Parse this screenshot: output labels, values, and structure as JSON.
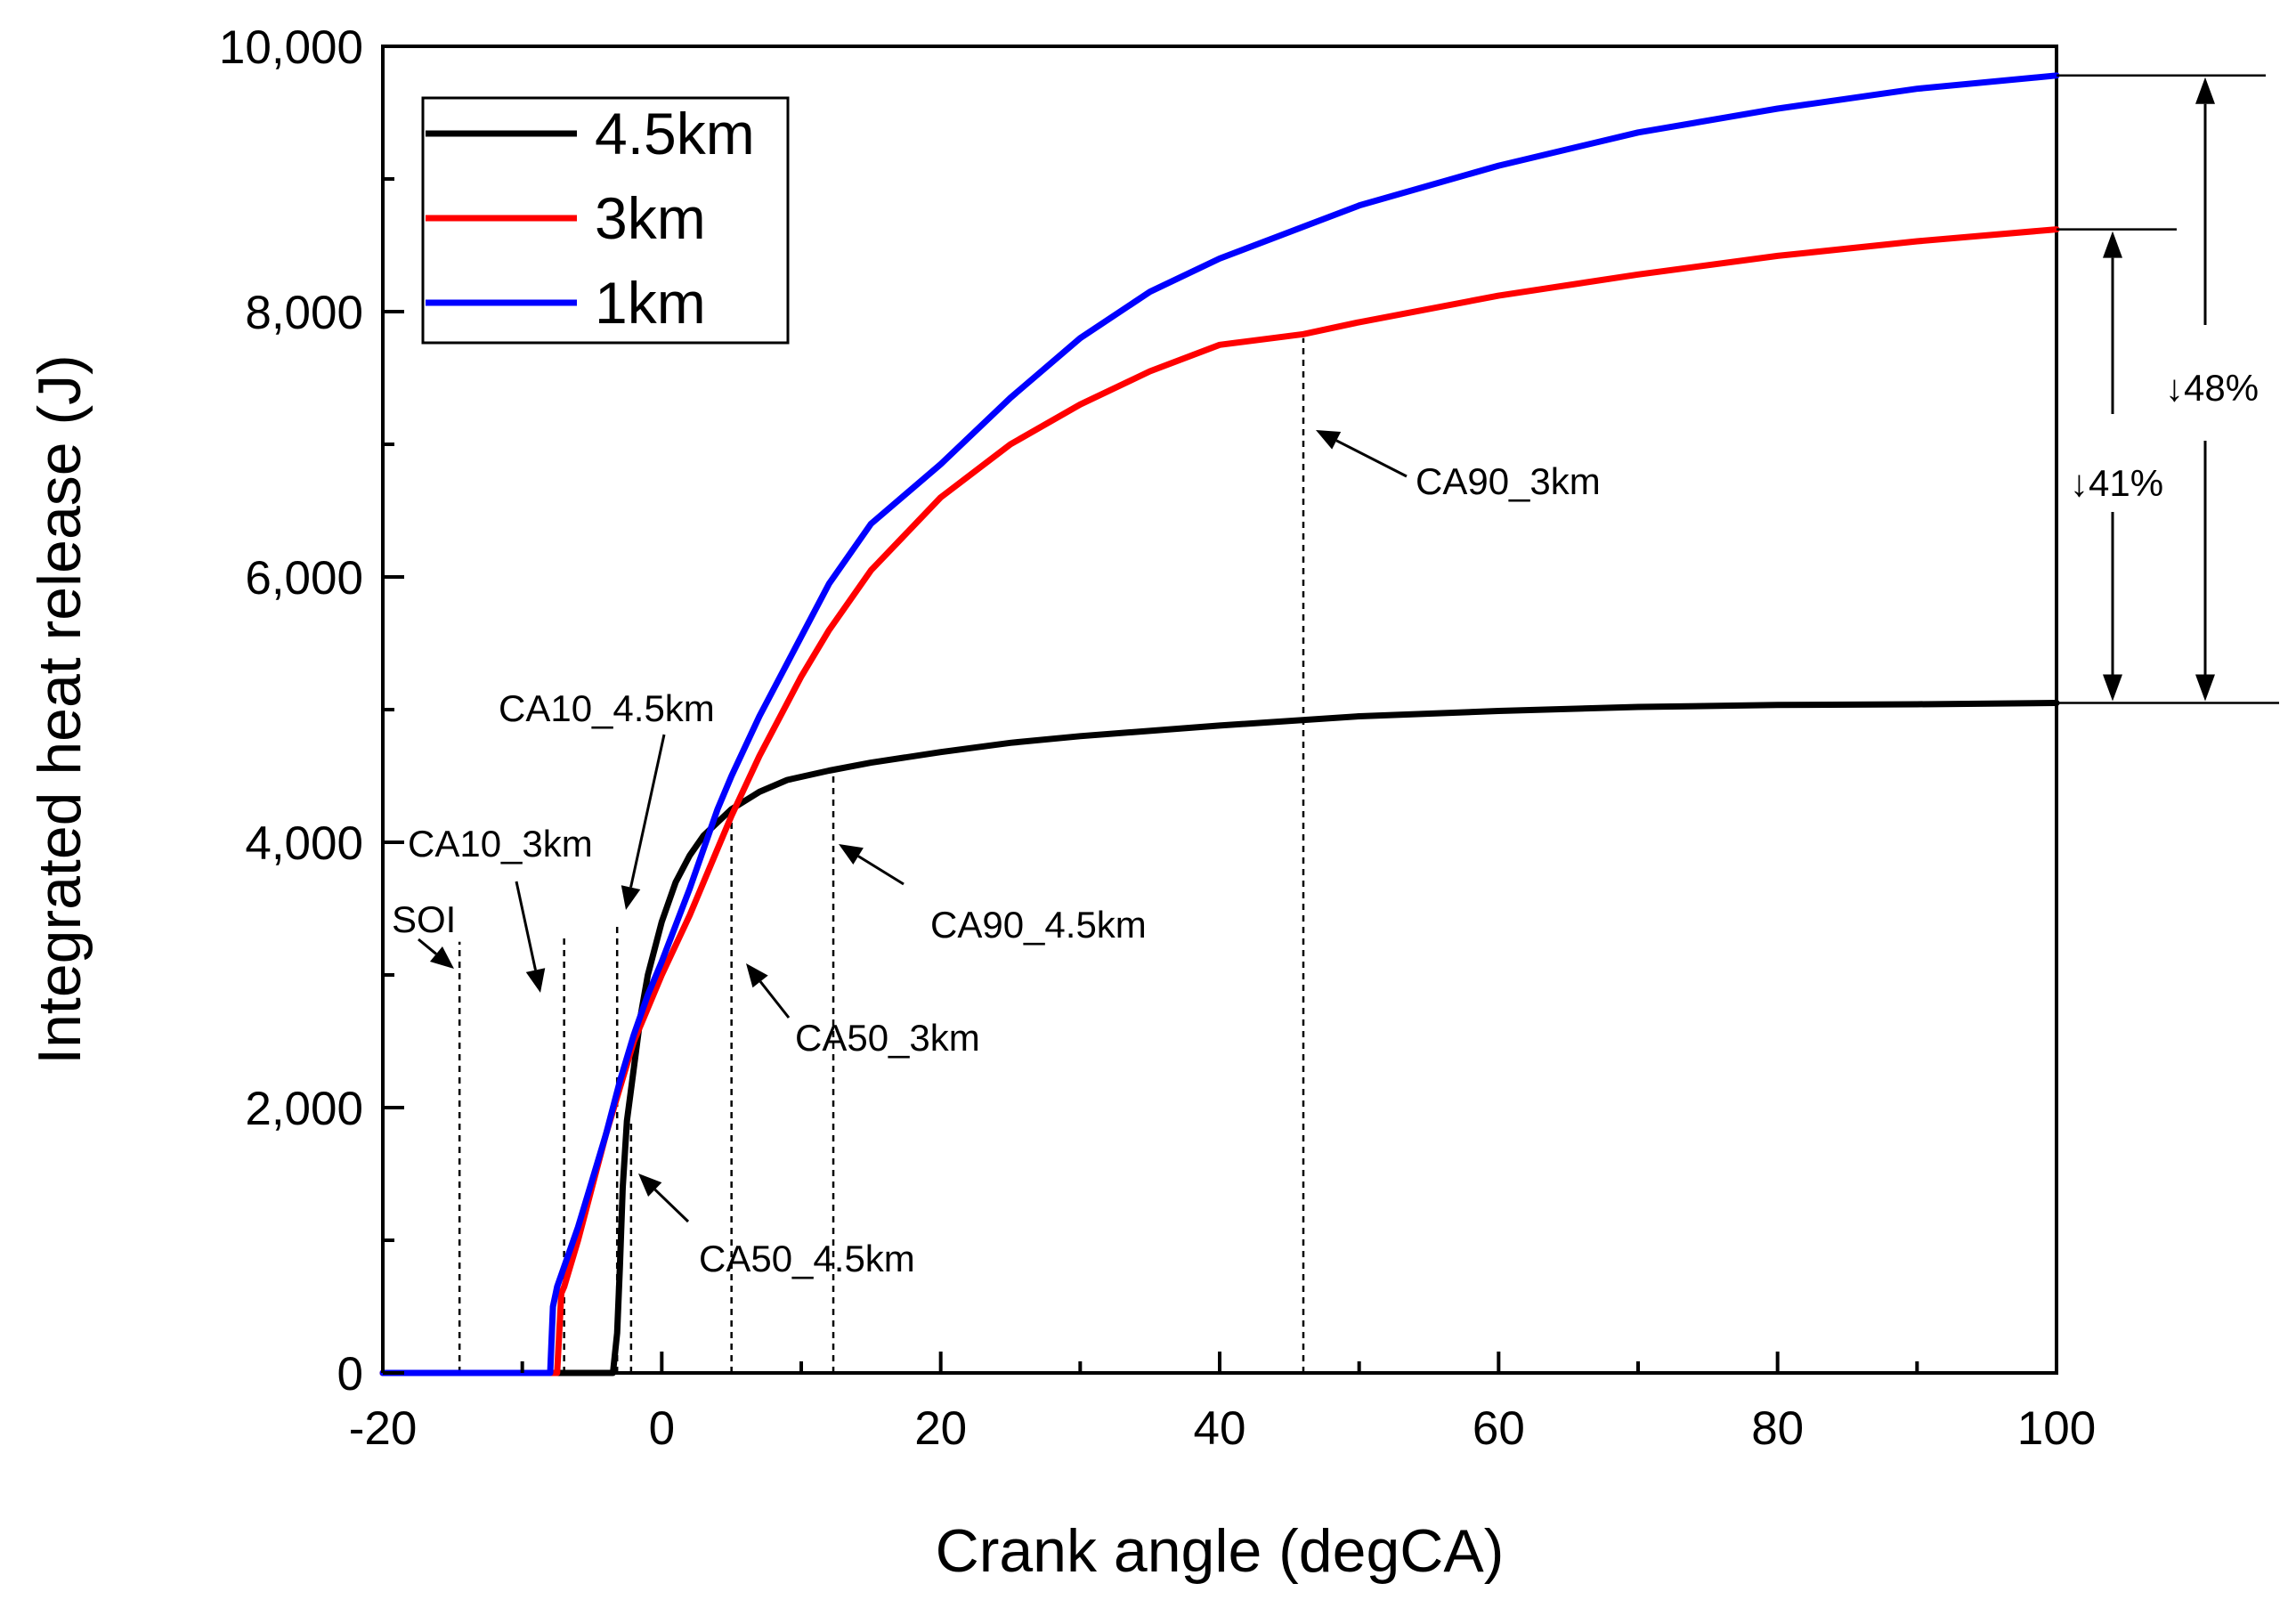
{
  "chart_data": {
    "type": "line",
    "title": "",
    "xlabel": "Crank angle (degCA)",
    "ylabel": "Integrated heat release (J)",
    "xlim": [
      -20,
      100
    ],
    "ylim": [
      0,
      10000
    ],
    "x_ticks": [
      -20,
      0,
      20,
      40,
      60,
      80,
      100
    ],
    "x_tick_labels": [
      "-20",
      "0",
      "20",
      "40",
      "60",
      "80",
      "100"
    ],
    "y_ticks": [
      0,
      2000,
      4000,
      6000,
      8000,
      10000
    ],
    "y_tick_labels": [
      "0",
      "2,000",
      "4,000",
      "6,000",
      "8,000",
      "10,000"
    ],
    "grid": false,
    "legend_position": "top-left",
    "series": [
      {
        "name": "4.5km",
        "color": "#000000",
        "points": [
          [
            -20,
            0
          ],
          [
            -3.5,
            0
          ],
          [
            -3.2,
            300
          ],
          [
            -3.0,
            800
          ],
          [
            -2.8,
            1400
          ],
          [
            -2.5,
            1900
          ],
          [
            -2,
            2300
          ],
          [
            -1.5,
            2700
          ],
          [
            -1,
            3000
          ],
          [
            0,
            3400
          ],
          [
            1,
            3700
          ],
          [
            2,
            3900
          ],
          [
            3,
            4050
          ],
          [
            4,
            4150
          ],
          [
            5,
            4250
          ],
          [
            7,
            4380
          ],
          [
            9,
            4470
          ],
          [
            12,
            4540
          ],
          [
            15,
            4600
          ],
          [
            20,
            4680
          ],
          [
            25,
            4750
          ],
          [
            30,
            4800
          ],
          [
            40,
            4880
          ],
          [
            50,
            4950
          ],
          [
            60,
            4990
          ],
          [
            70,
            5020
          ],
          [
            80,
            5035
          ],
          [
            90,
            5040
          ],
          [
            100,
            5050
          ]
        ]
      },
      {
        "name": "3km",
        "color": "#ff0000",
        "points": [
          [
            -20,
            0
          ],
          [
            -7.5,
            0
          ],
          [
            -7.2,
            600
          ],
          [
            -7,
            650
          ],
          [
            -6,
            1000
          ],
          [
            -5,
            1400
          ],
          [
            -4,
            1800
          ],
          [
            -3,
            2150
          ],
          [
            -2,
            2500
          ],
          [
            -1,
            2750
          ],
          [
            0,
            3000
          ],
          [
            2,
            3450
          ],
          [
            4,
            3950
          ],
          [
            5,
            4200
          ],
          [
            7,
            4650
          ],
          [
            10,
            5250
          ],
          [
            12,
            5600
          ],
          [
            15,
            6050
          ],
          [
            20,
            6600
          ],
          [
            25,
            7000
          ],
          [
            30,
            7300
          ],
          [
            35,
            7550
          ],
          [
            40,
            7750
          ],
          [
            46,
            7830
          ],
          [
            50,
            7920
          ],
          [
            60,
            8120
          ],
          [
            70,
            8280
          ],
          [
            80,
            8420
          ],
          [
            90,
            8530
          ],
          [
            100,
            8620
          ]
        ]
      },
      {
        "name": "1km",
        "color": "#0000ff",
        "points": [
          [
            -20,
            0
          ],
          [
            -8,
            0
          ],
          [
            -7.8,
            500
          ],
          [
            -7.5,
            650
          ],
          [
            -6,
            1100
          ],
          [
            -5,
            1450
          ],
          [
            -4,
            1800
          ],
          [
            -3,
            2200
          ],
          [
            -2,
            2550
          ],
          [
            -1,
            2850
          ],
          [
            0,
            3100
          ],
          [
            2,
            3650
          ],
          [
            4,
            4250
          ],
          [
            5,
            4500
          ],
          [
            7,
            4950
          ],
          [
            10,
            5550
          ],
          [
            12,
            5950
          ],
          [
            15,
            6400
          ],
          [
            20,
            6850
          ],
          [
            25,
            7350
          ],
          [
            30,
            7800
          ],
          [
            35,
            8150
          ],
          [
            40,
            8400
          ],
          [
            45,
            8600
          ],
          [
            50,
            8800
          ],
          [
            60,
            9100
          ],
          [
            70,
            9350
          ],
          [
            80,
            9530
          ],
          [
            90,
            9680
          ],
          [
            100,
            9780
          ]
        ]
      }
    ],
    "markers": [
      {
        "label": "SOI",
        "x": -14.5,
        "y_top": 3250
      },
      {
        "label": "CA10_3km",
        "x": -7,
        "y_top": 3300
      },
      {
        "label": "CA10_4.5km",
        "x": -3.2,
        "y_top": 3400
      },
      {
        "label": "CA50_4.5km",
        "x": -2.2,
        "y_top": 1900
      },
      {
        "label": "CA50_3km",
        "x": 5,
        "y_top": 4150
      },
      {
        "label": "CA90_4.5km",
        "x": 12.3,
        "y_top": 4550
      },
      {
        "label": "CA90_3km",
        "x": 46,
        "y_top": 7800
      }
    ],
    "annotations": [
      {
        "text": "↓48%",
        "from": 9780,
        "to": 5050
      },
      {
        "text": "↓41%",
        "from": 8620,
        "to": 5050
      }
    ]
  }
}
